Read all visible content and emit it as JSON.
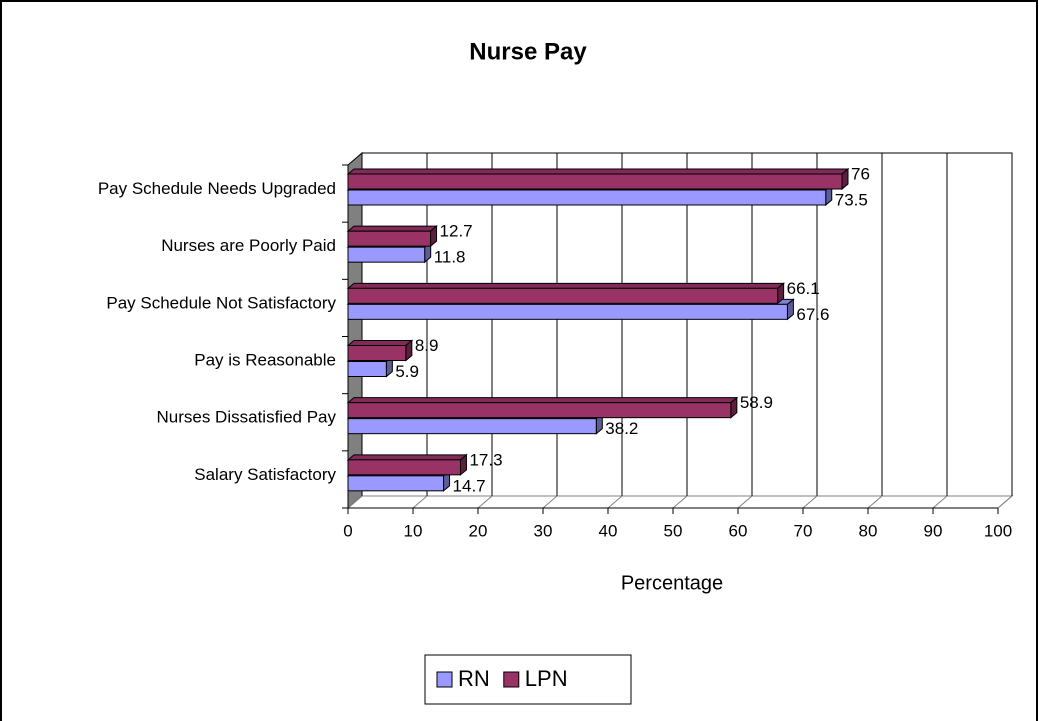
{
  "chart_data": {
    "type": "bar",
    "orientation": "horizontal",
    "title": "Nurse Pay",
    "xlabel": "Percentage",
    "categories": [
      "Pay Schedule Needs Upgraded",
      "Nurses are Poorly Paid",
      "Pay Schedule Not Satisfactory",
      "Pay is Reasonable",
      "Nurses Dissatisfied Pay",
      "Salary Satisfactory"
    ],
    "series": [
      {
        "name": "RN",
        "color": "#9999ff",
        "values": [
          73.5,
          11.8,
          67.6,
          5.9,
          38.2,
          14.7
        ]
      },
      {
        "name": "LPN",
        "color": "#993366",
        "values": [
          76,
          12.7,
          66.1,
          8.9,
          58.9,
          17.3
        ]
      }
    ],
    "xlim": [
      0,
      100
    ],
    "xticks": [
      0,
      10,
      20,
      30,
      40,
      50,
      60,
      70,
      80,
      90,
      100
    ],
    "grid": true,
    "legend": "bottom"
  }
}
